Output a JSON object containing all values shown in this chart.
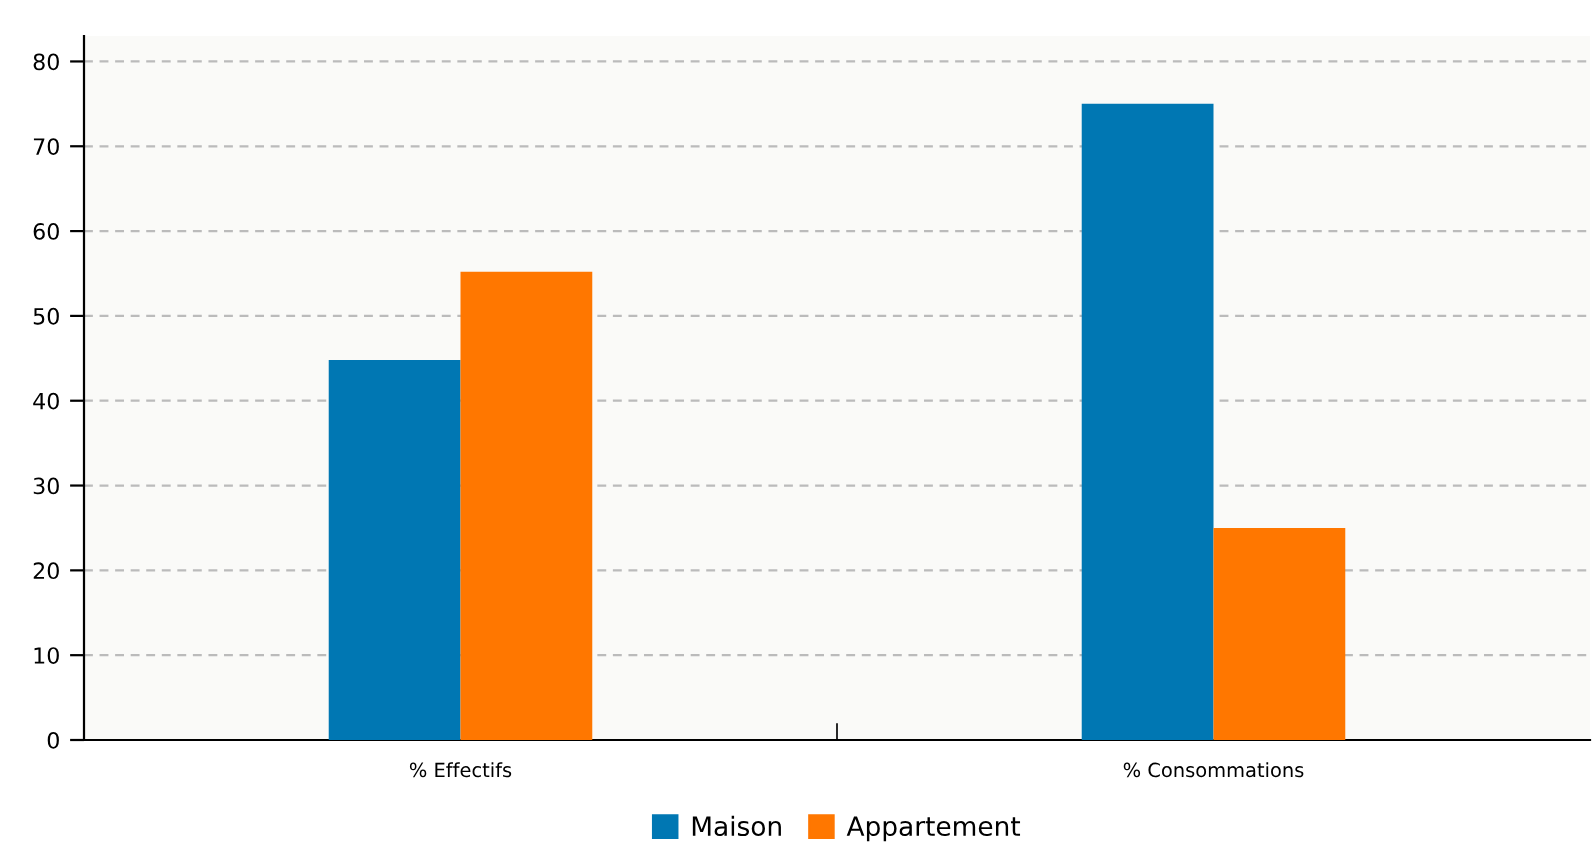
{
  "chart_data": {
    "type": "bar",
    "categories": [
      "% Effectifs",
      "% Consommations"
    ],
    "series": [
      {
        "name": "Maison",
        "color": "#0077b3",
        "values": [
          44.8,
          75
        ]
      },
      {
        "name": "Appartement",
        "color": "#ff7700",
        "values": [
          55.2,
          25
        ]
      }
    ],
    "ylim": [
      0,
      83
    ],
    "yticks": [
      0,
      10,
      20,
      30,
      40,
      50,
      60,
      70,
      80
    ],
    "grid": "y",
    "legend": "bottom"
  }
}
